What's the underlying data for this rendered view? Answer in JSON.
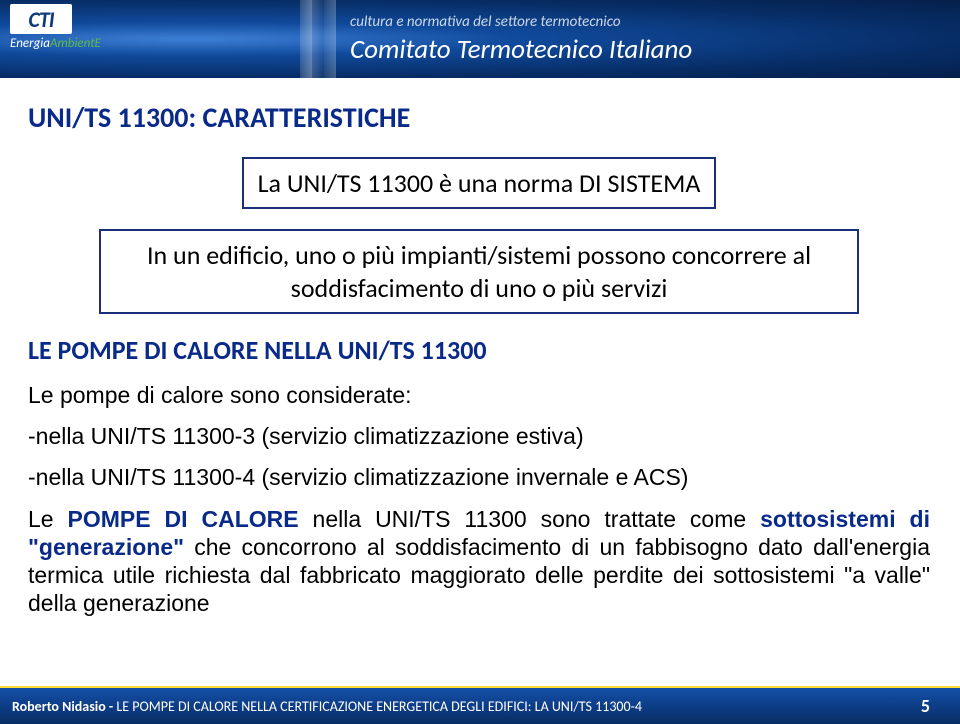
{
  "header": {
    "logo_text": "CTI",
    "logo_sub_a": "Energia",
    "logo_sub_b": "AmbientE",
    "tagline": "cultura e normativa del settore termotecnico",
    "title": "Comitato Termotecnico Italiano"
  },
  "slide_title": "UNI/TS 11300: CARATTERISTICHE",
  "box1": "La UNI/TS 11300 è una norma DI SISTEMA",
  "box2": "In un edificio, uno o più impianti/sistemi possono concorrere al soddisfacimento di uno o più servizi",
  "sub_head": "LE POMPE DI CALORE NELLA UNI/TS 11300",
  "line1": "Le pompe di calore sono considerate:",
  "line2": "-nella UNI/TS 11300-3 (servizio climatizzazione estiva)",
  "line3": "-nella UNI/TS 11300-4 (servizio climatizzazione invernale e ACS)",
  "para": {
    "p1": "Le ",
    "p2": "POMPE DI CALORE",
    "p3": " nella UNI/TS 11300 sono trattate come ",
    "p4": "sottosistemi di \"generazione\"",
    "p5": " che concorrono al soddisfacimento di un fabbisogno dato dall'energia termica utile richiesta dal fabbricato maggiorato delle perdite dei sottosistemi \"a valle\" della generazione"
  },
  "footer": {
    "author": "Roberto Nidasio - ",
    "doc": " LE POMPE DI CALORE NELLA CERTIFICAZIONE ENERGETICA DEGLI EDIFICI: LA UNI/TS 11300-4",
    "page": "5"
  }
}
